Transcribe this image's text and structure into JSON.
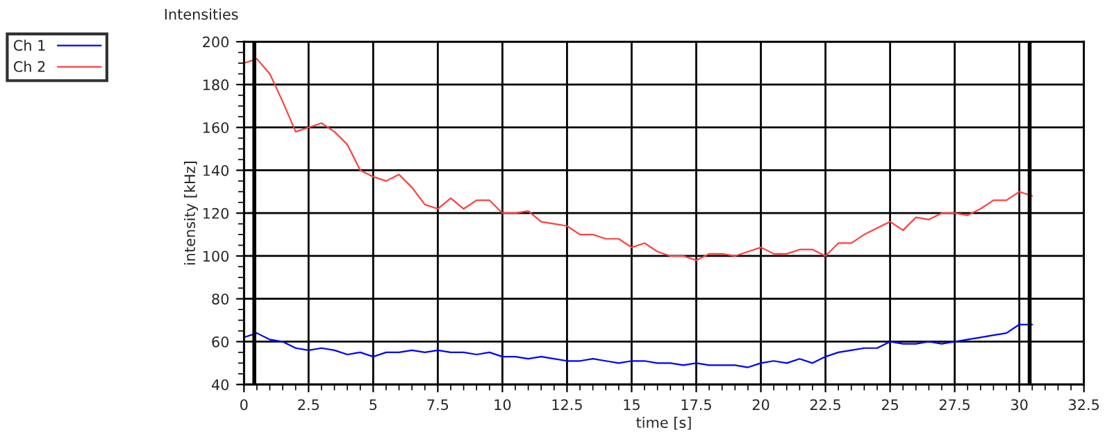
{
  "chart_data": {
    "type": "line",
    "title": "Intensities",
    "xlabel": "time [s]",
    "ylabel": "intensity [kHz]",
    "x": [
      0,
      0.5,
      1,
      1.5,
      2,
      2.5,
      3,
      3.5,
      4,
      4.5,
      5,
      5.5,
      6,
      6.5,
      7,
      7.5,
      8,
      8.5,
      9,
      9.5,
      10,
      10.5,
      11,
      11.5,
      12,
      12.5,
      13,
      13.5,
      14,
      14.5,
      15,
      15.5,
      16,
      16.5,
      17,
      17.5,
      18,
      18.5,
      19,
      19.5,
      20,
      20.5,
      21,
      21.5,
      22,
      22.5,
      23,
      23.5,
      24,
      24.5,
      25,
      25.5,
      26,
      26.5,
      27,
      27.5,
      28,
      28.5,
      29,
      29.5,
      30,
      30.5
    ],
    "series": [
      {
        "name": "Ch 1",
        "color": "#0000ff",
        "values": [
          62,
          64,
          61,
          60,
          57,
          56,
          57,
          56,
          54,
          55,
          53,
          55,
          55,
          56,
          55,
          56,
          55,
          55,
          54,
          55,
          53,
          53,
          52,
          53,
          52,
          51,
          51,
          52,
          51,
          50,
          51,
          51,
          50,
          50,
          49,
          50,
          49,
          49,
          49,
          48,
          50,
          51,
          50,
          52,
          50,
          53,
          55,
          56,
          57,
          57,
          60,
          59,
          59,
          60,
          59,
          60,
          61,
          62,
          63,
          64,
          68,
          68
        ]
      },
      {
        "name": "Ch 2",
        "color": "#ff4040",
        "values": [
          190,
          192,
          185,
          172,
          158,
          160,
          162,
          158,
          152,
          140,
          137,
          135,
          138,
          132,
          124,
          122,
          127,
          122,
          126,
          126,
          120,
          120,
          121,
          116,
          115,
          114,
          110,
          110,
          108,
          108,
          104,
          106,
          102,
          100,
          100,
          98,
          101,
          101,
          100,
          102,
          104,
          101,
          101,
          103,
          103,
          100,
          106,
          106,
          110,
          113,
          116,
          112,
          118,
          117,
          120,
          120,
          119,
          122,
          126,
          126,
          130,
          128
        ]
      }
    ],
    "xlim": [
      0,
      32.5
    ],
    "xticks": [
      0,
      2.5,
      5,
      7.5,
      10,
      12.5,
      15,
      17.5,
      20,
      22.5,
      25,
      27.5,
      30,
      32.5
    ],
    "ylim": [
      40,
      200
    ],
    "yticks": [
      40,
      60,
      80,
      100,
      120,
      140,
      160,
      180,
      200
    ],
    "ref_lines": [
      {
        "axis": "x",
        "value": 0.4,
        "color": "#000000"
      },
      {
        "axis": "x",
        "value": 30.4,
        "color": "#000000"
      }
    ],
    "grid": true,
    "legend": "top left",
    "marker": "none",
    "line_style": "solid"
  }
}
